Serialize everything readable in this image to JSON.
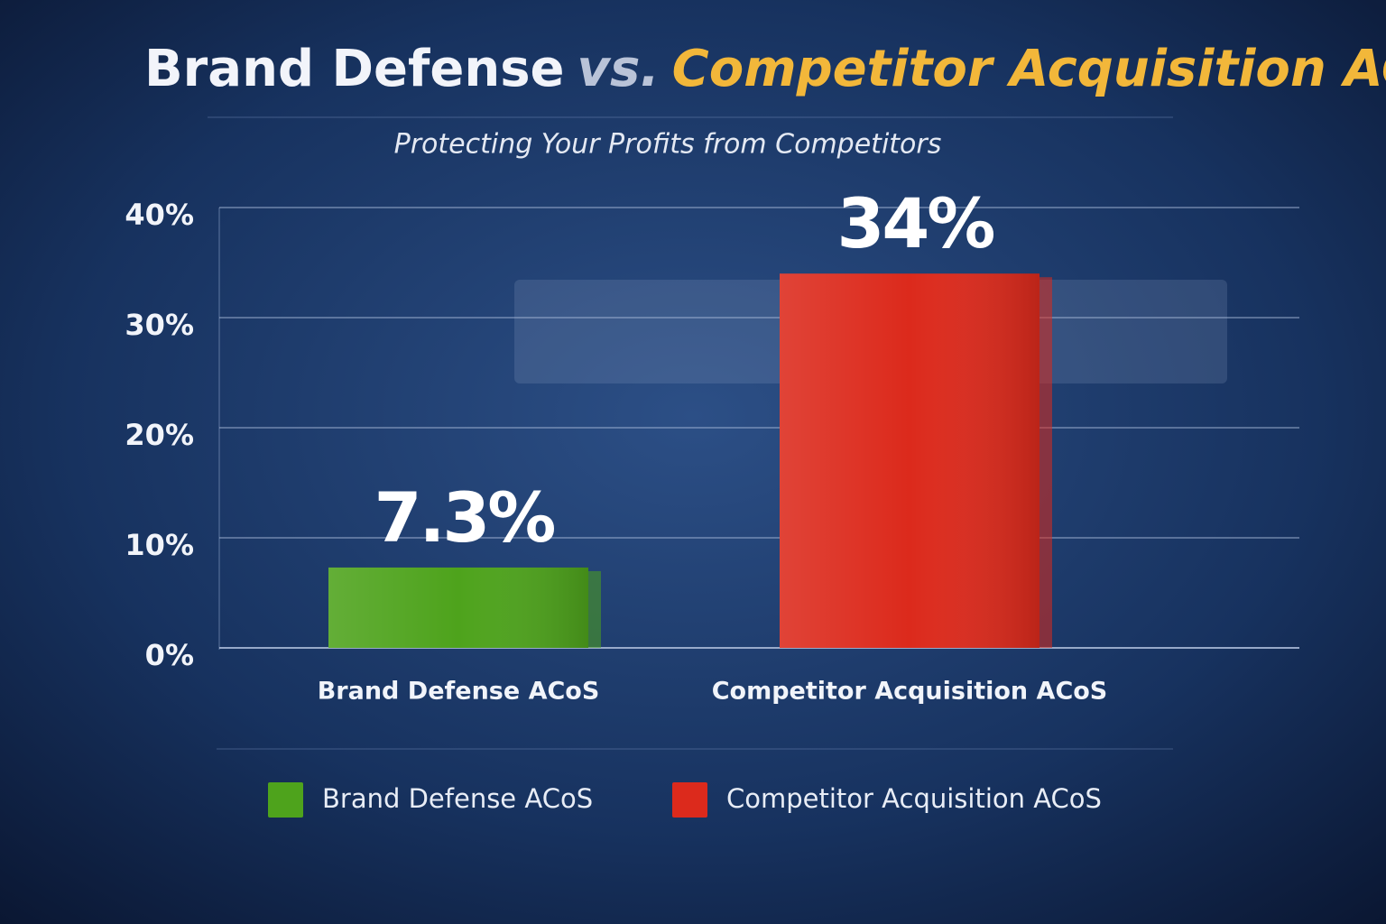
{
  "chart_data": {
    "type": "bar",
    "title": [
      "Brand Defense",
      "vs.",
      "Competitor Acquisition ACoS"
    ],
    "title_colors": [
      "#f2f4fa",
      "#b9c3d8",
      "#f2b73a"
    ],
    "subtitle": "Protecting Your Profits from Competitors",
    "categories": [
      "Brand Defense ACoS",
      "Competitor Acquisition ACoS"
    ],
    "values": [
      7.3,
      34
    ],
    "value_labels": [
      "7.3%",
      "34%"
    ],
    "colors": [
      "#4ea31c",
      "#dc2a1c"
    ],
    "ylim": [
      0,
      40
    ],
    "yticks": [
      {
        "value": 0,
        "label": "0%"
      },
      {
        "value": 10,
        "label": "10%"
      },
      {
        "value": 20,
        "label": "20%"
      },
      {
        "value": 30,
        "label": "30%"
      },
      {
        "value": 40,
        "label": "40%"
      }
    ],
    "grid": true,
    "legend": "bottom"
  }
}
